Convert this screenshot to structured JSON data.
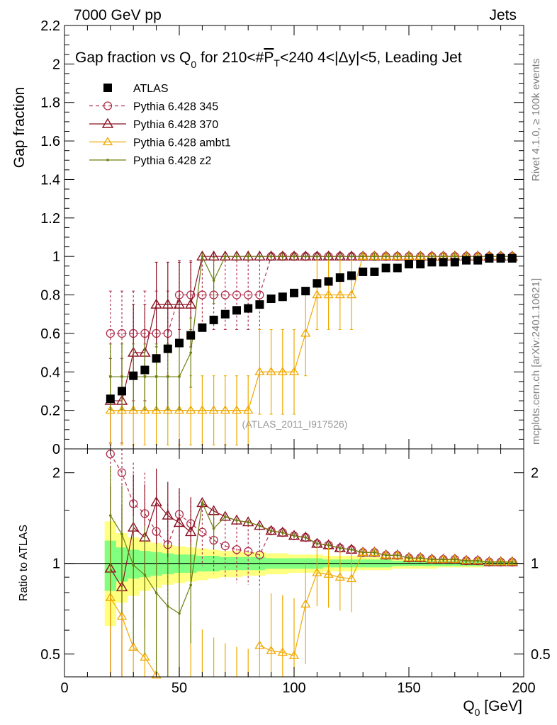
{
  "header": {
    "left": "7000 GeV pp",
    "right": "Jets"
  },
  "title": {
    "pre": "Gap fraction vs Q",
    "sub": "0",
    "mid": " for 210<#",
    "over": "P",
    "oversub": "T",
    "post": "<240  4<|Δy|<5, Leading Jet"
  },
  "side_right": {
    "rivet": "Rivet 4.1.0, ≥ 100k events",
    "mcplots": "mcplots.cern.ch [arXiv:2401.10621]"
  },
  "watermark": "(ATLAS_2011_I917526)",
  "colors": {
    "atlas": "#000000",
    "p345": "#b0304e",
    "p370": "#8a1020",
    "ambt1": "#f0a800",
    "z2": "#6b7f10",
    "band_yellow": "#ffff80",
    "band_green": "#80ff80"
  },
  "chart_data": {
    "type": "line",
    "x": [
      20,
      25,
      30,
      35,
      40,
      45,
      50,
      55,
      60,
      65,
      70,
      75,
      80,
      85,
      90,
      95,
      100,
      105,
      110,
      115,
      120,
      125,
      130,
      135,
      140,
      145,
      150,
      155,
      160,
      165,
      170,
      175,
      180,
      185,
      190,
      195
    ],
    "main": {
      "ylabel": "Gap fraction",
      "xlim": [
        0,
        200
      ],
      "ylim": [
        0,
        2.2
      ],
      "yticks": [
        {
          "v": 0,
          "t": "0"
        },
        {
          "v": 0.2,
          "t": "0.2"
        },
        {
          "v": 0.4,
          "t": "0.4"
        },
        {
          "v": 0.6,
          "t": "0.6"
        },
        {
          "v": 0.8,
          "t": "0.8"
        },
        {
          "v": 1,
          "t": "1"
        },
        {
          "v": 1.2,
          "t": "1.2"
        },
        {
          "v": 1.4,
          "t": "1.4"
        },
        {
          "v": 1.6,
          "t": "1.6"
        },
        {
          "v": 1.8,
          "t": "1.8"
        },
        {
          "v": 2,
          "t": "2"
        },
        {
          "v": 2.2,
          "t": "2.2"
        }
      ],
      "series": [
        {
          "name": "ATLAS",
          "key": "atlas",
          "values": [
            0.26,
            0.3,
            0.38,
            0.41,
            0.47,
            0.52,
            0.55,
            0.59,
            0.63,
            0.67,
            0.7,
            0.72,
            0.73,
            0.75,
            0.78,
            0.79,
            0.81,
            0.82,
            0.86,
            0.87,
            0.89,
            0.9,
            0.92,
            0.92,
            0.94,
            0.94,
            0.96,
            0.96,
            0.97,
            0.97,
            0.97,
            0.98,
            0.98,
            0.99,
            0.99,
            0.99
          ],
          "errors": [
            0.01,
            0.01,
            0.01,
            0.01,
            0.01,
            0.01,
            0.01,
            0.01,
            0.01,
            0.01,
            0.01,
            0.01,
            0.01,
            0.01,
            0.01,
            0.01,
            0.01,
            0.01,
            0.01,
            0.01,
            0.01,
            0.01,
            0.01,
            0.01,
            0.01,
            0.01,
            0.01,
            0.01,
            0.01,
            0.01,
            0.01,
            0.01,
            0.01,
            0.01,
            0.01,
            0.01
          ]
        },
        {
          "name": "Pythia 6.428 345",
          "key": "p345",
          "values": [
            0.6,
            0.6,
            0.6,
            0.6,
            0.6,
            0.6,
            0.8,
            0.8,
            0.8,
            0.8,
            0.8,
            0.8,
            0.8,
            0.8,
            1,
            1,
            1,
            1,
            1,
            1,
            1,
            1,
            1,
            1,
            1,
            1,
            1,
            1,
            1,
            1,
            1,
            1,
            1,
            1,
            1,
            1
          ],
          "errors": [
            0.22,
            0.22,
            0.22,
            0.22,
            0.22,
            0.22,
            0.18,
            0.18,
            0.18,
            0.18,
            0.18,
            0.18,
            0.18,
            0.18,
            0.02,
            0.02,
            0.02,
            0.02,
            0.02,
            0.02,
            0.02,
            0.02,
            0.02,
            0.02,
            0.02,
            0.02,
            0.02,
            0.02,
            0.02,
            0.02,
            0.02,
            0.02,
            0.02,
            0.02,
            0.02,
            0.02
          ]
        },
        {
          "name": "Pythia 6.428 370",
          "key": "p370",
          "values": [
            0.25,
            0.25,
            0.5,
            0.5,
            0.75,
            0.75,
            0.75,
            0.75,
            1,
            1,
            1,
            1,
            1,
            1,
            1,
            1,
            1,
            1,
            1,
            1,
            1,
            1,
            1,
            1,
            1,
            1,
            1,
            1,
            1,
            1,
            1,
            1,
            1,
            1,
            1,
            1
          ],
          "errors": [
            0.22,
            0.22,
            0.25,
            0.25,
            0.22,
            0.22,
            0.22,
            0.22,
            0.02,
            0.02,
            0.02,
            0.02,
            0.02,
            0.02,
            0.02,
            0.02,
            0.02,
            0.02,
            0.02,
            0.02,
            0.02,
            0.02,
            0.02,
            0.02,
            0.02,
            0.02,
            0.02,
            0.02,
            0.02,
            0.02,
            0.02,
            0.02,
            0.02,
            0.02,
            0.02,
            0.02
          ]
        },
        {
          "name": "Pythia 6.428 ambt1",
          "key": "ambt1",
          "values": [
            0.2,
            0.2,
            0.2,
            0.2,
            0.2,
            0.2,
            0.2,
            0.2,
            0.2,
            0.2,
            0.2,
            0.2,
            0.2,
            0.4,
            0.4,
            0.4,
            0.4,
            0.6,
            0.8,
            0.8,
            0.8,
            0.8,
            1,
            1,
            1,
            1,
            1,
            1,
            1,
            1,
            1,
            1,
            1,
            1,
            1,
            1
          ],
          "errors": [
            0.18,
            0.18,
            0.18,
            0.18,
            0.18,
            0.18,
            0.18,
            0.18,
            0.18,
            0.18,
            0.18,
            0.18,
            0.18,
            0.22,
            0.22,
            0.22,
            0.22,
            0.22,
            0.18,
            0.18,
            0.18,
            0.18,
            0.02,
            0.02,
            0.02,
            0.02,
            0.02,
            0.02,
            0.02,
            0.02,
            0.02,
            0.02,
            0.02,
            0.02,
            0.02,
            0.02
          ]
        },
        {
          "name": "Pythia 6.428 z2",
          "key": "z2",
          "values": [
            0.375,
            0.375,
            0.375,
            0.375,
            0.375,
            0.375,
            0.375,
            0.5,
            1,
            0.875,
            1,
            1,
            1,
            1,
            1,
            1,
            1,
            1,
            1,
            1,
            1,
            1,
            1,
            1,
            1,
            1,
            1,
            1,
            1,
            1,
            1,
            1,
            1,
            1,
            1,
            1
          ],
          "errors": [
            0.17,
            0.17,
            0.17,
            0.17,
            0.17,
            0.17,
            0.17,
            0.18,
            0.02,
            0.12,
            0.02,
            0.02,
            0.02,
            0.02,
            0.02,
            0.02,
            0.02,
            0.02,
            0.02,
            0.02,
            0.02,
            0.02,
            0.02,
            0.02,
            0.02,
            0.02,
            0.02,
            0.02,
            0.02,
            0.02,
            0.02,
            0.02,
            0.02,
            0.02,
            0.02,
            0.02
          ]
        }
      ]
    },
    "ratio": {
      "ylabel": "Ratio to ATLAS",
      "xlabel_pre": "Q",
      "xlabel_sub": "0",
      "xlabel_post": " [GeV]",
      "ylim_log": [
        0.42,
        2.4
      ],
      "yticks": [
        {
          "v": 0.5,
          "t": "0.5"
        },
        {
          "v": 1,
          "t": "1"
        },
        {
          "v": 2,
          "t": "2"
        }
      ],
      "xticks": [
        {
          "v": 0,
          "t": "0"
        },
        {
          "v": 50,
          "t": "50"
        },
        {
          "v": 100,
          "t": "100"
        },
        {
          "v": 150,
          "t": "150"
        },
        {
          "v": 200,
          "t": "200"
        }
      ],
      "band_yellow": [
        0.38,
        0.26,
        0.22,
        0.19,
        0.17,
        0.15,
        0.14,
        0.13,
        0.12,
        0.11,
        0.1,
        0.1,
        0.09,
        0.09,
        0.08,
        0.08,
        0.07,
        0.07,
        0.07,
        0.06,
        0.06,
        0.06,
        0.05,
        0.05,
        0.05,
        0.04,
        0.04,
        0.04,
        0.04,
        0.03,
        0.03,
        0.03,
        0.03,
        0.02,
        0.02,
        0.02
      ],
      "band_green": [
        0.19,
        0.13,
        0.11,
        0.1,
        0.09,
        0.08,
        0.07,
        0.07,
        0.06,
        0.06,
        0.05,
        0.05,
        0.05,
        0.05,
        0.04,
        0.04,
        0.04,
        0.04,
        0.04,
        0.03,
        0.03,
        0.03,
        0.03,
        0.03,
        0.03,
        0.02,
        0.02,
        0.02,
        0.02,
        0.02,
        0.02,
        0.02,
        0.02,
        0.01,
        0.01,
        0.01
      ]
    }
  }
}
